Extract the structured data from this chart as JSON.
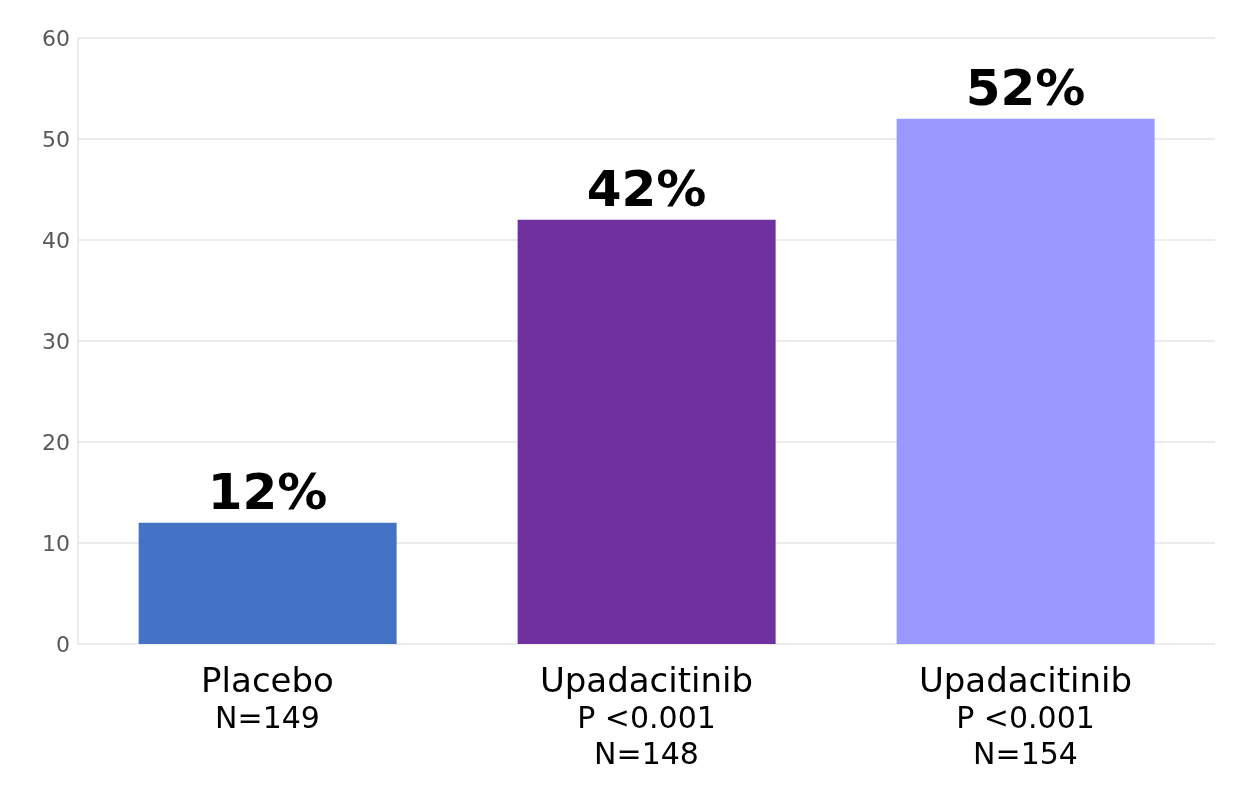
{
  "chart_data": {
    "type": "bar",
    "categories": [
      "Placebo\nN=149",
      "Upadacitinib\nP <0.001\nN=148",
      "Upadacitinib\nP <0.001\nN=154"
    ],
    "values": [
      12,
      42,
      52
    ],
    "colors": [
      "#4472c4",
      "#7030a0",
      "#9999ff"
    ],
    "value_labels": [
      "12%",
      "42%",
      "52%"
    ],
    "ylim": [
      0,
      60
    ],
    "yticks": [
      0,
      10,
      20,
      30,
      40,
      50,
      60
    ],
    "grid": "y"
  }
}
